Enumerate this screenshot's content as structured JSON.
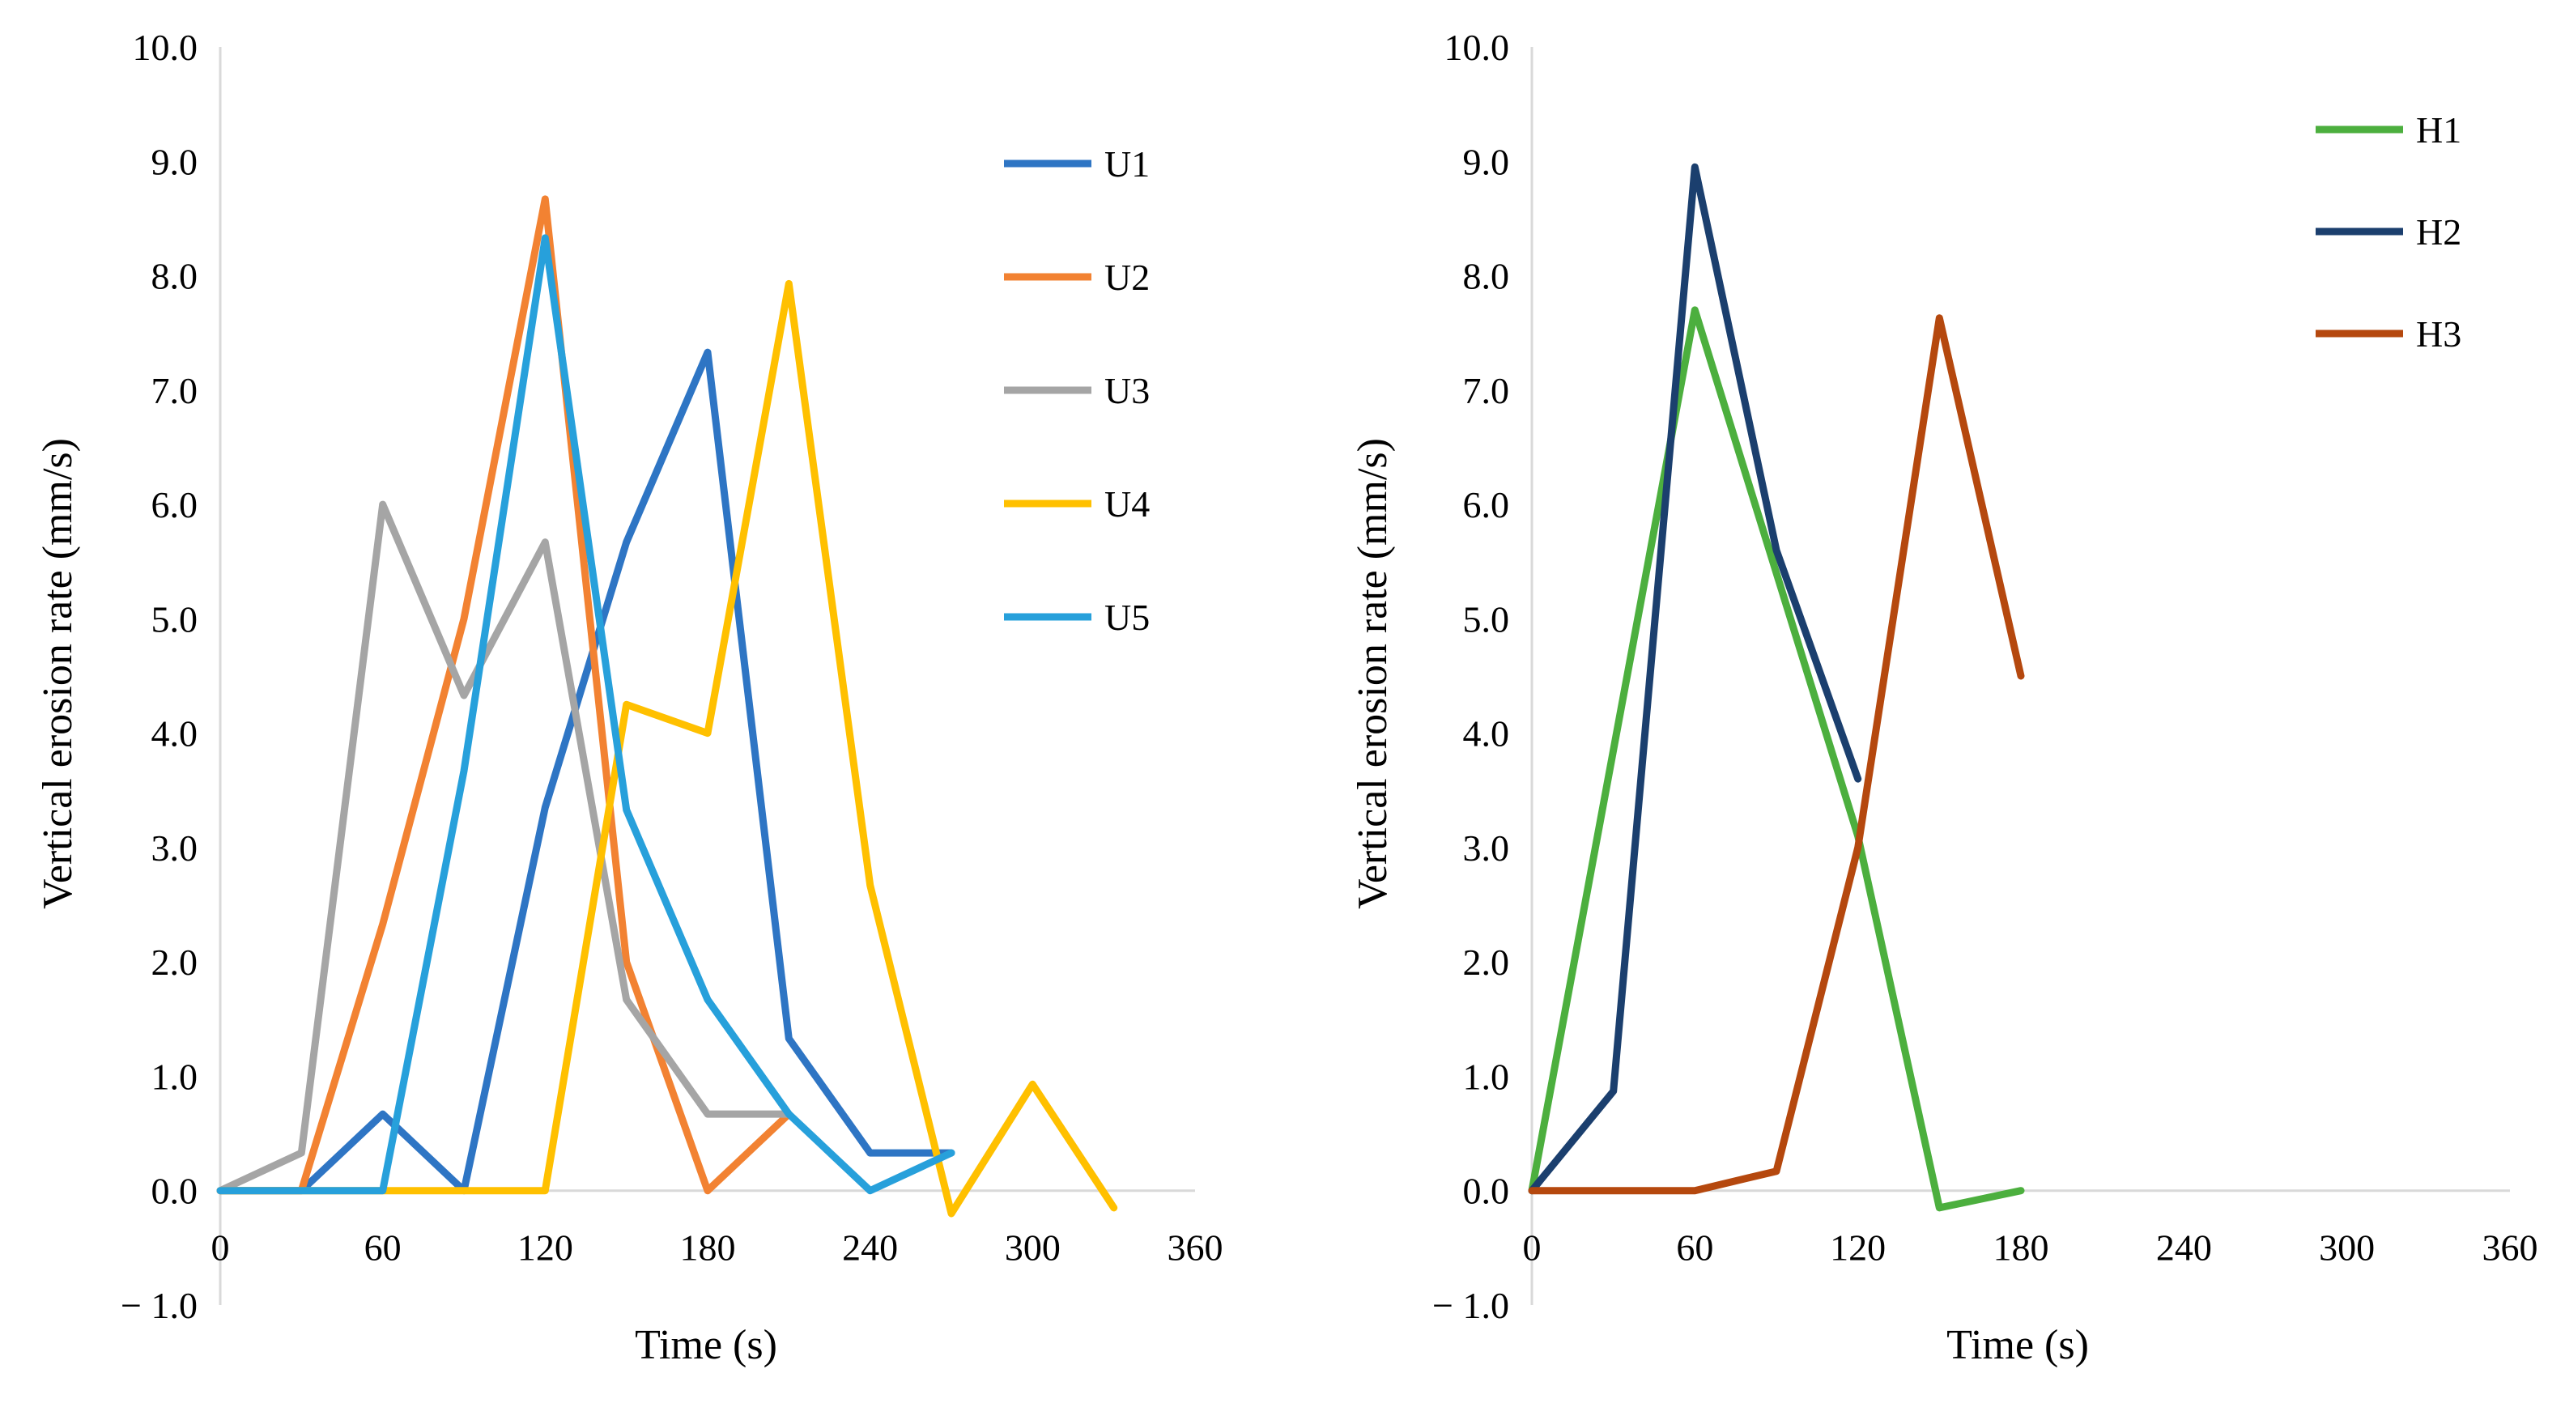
{
  "chart_data": [
    {
      "type": "line",
      "title": "",
      "xlabel": "Time (s)",
      "ylabel": "Vertical erosion rate (mm/s)",
      "xlim": [
        0,
        360
      ],
      "ylim": [
        -1,
        10
      ],
      "x_ticks": [
        0,
        60,
        120,
        180,
        240,
        300,
        360
      ],
      "x_tick_labels": [
        "0",
        "60",
        "120",
        "180",
        "240",
        "300",
        "360"
      ],
      "y_ticks": [
        -1,
        0,
        1,
        2,
        3,
        4,
        5,
        6,
        7,
        8,
        9,
        10
      ],
      "y_tick_labels": [
        "− 1.0",
        "0.0",
        "1.0",
        "2.0",
        "3.0",
        "4.0",
        "5.0",
        "6.0",
        "7.0",
        "8.0",
        "9.0",
        "10.0"
      ],
      "grid": false,
      "legend_position": "top-right",
      "series": [
        {
          "name": "U1",
          "color": "#2E75C4",
          "x": [
            0,
            30,
            60,
            90,
            120,
            150,
            180,
            210,
            240,
            270
          ],
          "values": [
            0,
            0,
            0.67,
            0,
            3.35,
            5.67,
            7.33,
            1.33,
            0.33,
            0.33
          ]
        },
        {
          "name": "U2",
          "color": "#F28232",
          "x": [
            0,
            30,
            60,
            90,
            120,
            150,
            180,
            210
          ],
          "values": [
            0,
            0,
            2.33,
            5.0,
            8.67,
            2.0,
            0,
            0.67
          ]
        },
        {
          "name": "U3",
          "color": "#A5A5A5",
          "x": [
            0,
            30,
            60,
            90,
            120,
            150,
            180,
            210
          ],
          "values": [
            0,
            0.33,
            6.0,
            4.33,
            5.67,
            1.67,
            0.67,
            0.67
          ]
        },
        {
          "name": "U4",
          "color": "#FFC000",
          "x": [
            0,
            30,
            60,
            90,
            120,
            150,
            180,
            210,
            240,
            270,
            300,
            330
          ],
          "values": [
            0,
            0,
            0,
            0,
            0,
            4.25,
            4.0,
            7.93,
            2.67,
            -0.2,
            0.93,
            -0.15
          ]
        },
        {
          "name": "U5",
          "color": "#27A0DB",
          "x": [
            0,
            30,
            60,
            90,
            120,
            150,
            180,
            210,
            240,
            270
          ],
          "values": [
            0,
            0,
            0,
            3.67,
            8.33,
            3.33,
            1.67,
            0.67,
            0,
            0.33
          ]
        }
      ]
    },
    {
      "type": "line",
      "title": "",
      "xlabel": "Time (s)",
      "ylabel": "Vertical erosion rate (mm/s)",
      "xlim": [
        0,
        360
      ],
      "ylim": [
        -1,
        10
      ],
      "x_ticks": [
        0,
        60,
        120,
        180,
        240,
        300,
        360
      ],
      "x_tick_labels": [
        "0",
        "60",
        "120",
        "180",
        "240",
        "300",
        "360"
      ],
      "y_ticks": [
        -1,
        0,
        1,
        2,
        3,
        4,
        5,
        6,
        7,
        8,
        9,
        10
      ],
      "y_tick_labels": [
        "− 1.0",
        "0.0",
        "1.0",
        "2.0",
        "3.0",
        "4.0",
        "5.0",
        "6.0",
        "7.0",
        "8.0",
        "9.0",
        "10.0"
      ],
      "grid": false,
      "legend_position": "top-right",
      "series": [
        {
          "name": "H1",
          "color": "#4CAF3E",
          "x": [
            0,
            60,
            120,
            150,
            180
          ],
          "values": [
            0,
            7.7,
            3.1,
            -0.15,
            0
          ]
        },
        {
          "name": "H2",
          "color": "#1B3F6E",
          "x": [
            0,
            30,
            60,
            90,
            120
          ],
          "values": [
            0,
            0.87,
            8.95,
            5.6,
            3.6
          ]
        },
        {
          "name": "H3",
          "color": "#B5480E",
          "x": [
            0,
            30,
            60,
            90,
            120,
            150,
            180
          ],
          "values": [
            0,
            0,
            0,
            0.17,
            3.0,
            7.63,
            4.5
          ]
        }
      ]
    }
  ]
}
